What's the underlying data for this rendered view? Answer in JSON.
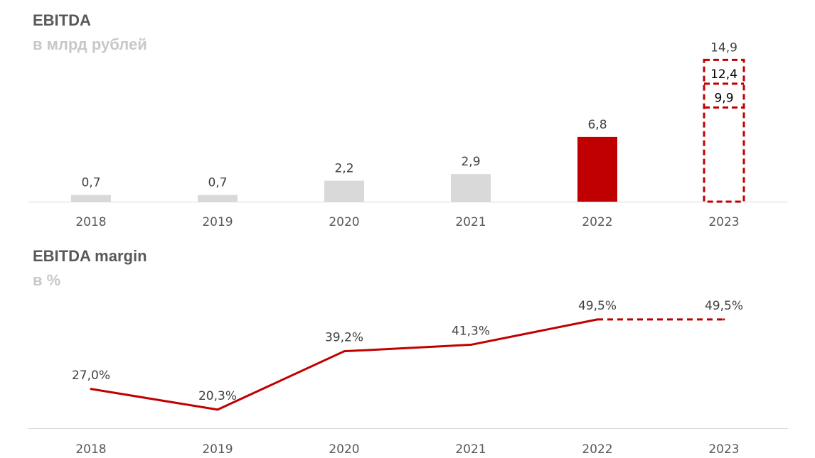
{
  "colors": {
    "bar_grey": "#d9d9d9",
    "accent_red": "#c00000",
    "axis": "#d9d9d9",
    "title": "#595959",
    "subtitle": "#c8c8c8"
  },
  "chart_data": [
    {
      "type": "bar",
      "title": "EBITDA",
      "subtitle": "в млрд рублей",
      "categories": [
        "2018",
        "2019",
        "2020",
        "2021",
        "2022",
        "2023"
      ],
      "values": [
        0.7,
        0.7,
        2.2,
        2.9,
        6.8,
        null
      ],
      "value_labels": [
        "0,7",
        "0,7",
        "2,2",
        "2,9",
        "6,8",
        ""
      ],
      "highlight_index": 4,
      "forecast": {
        "category": "2023",
        "scenarios": [
          9.9,
          12.4,
          14.9
        ],
        "labels": [
          "9,9",
          "12,4",
          "14,9"
        ],
        "style": "dashed"
      },
      "ylim": [
        0,
        16
      ],
      "xlabel": "",
      "ylabel": "",
      "grid": false
    },
    {
      "type": "line",
      "title": "EBITDA margin",
      "subtitle": "в %",
      "categories": [
        "2018",
        "2019",
        "2020",
        "2021",
        "2022",
        "2023"
      ],
      "values": [
        27.0,
        20.3,
        39.2,
        41.3,
        49.5,
        49.5
      ],
      "value_labels": [
        "27,0%",
        "20,3%",
        "39,2%",
        "41,3%",
        "49,5%",
        "49,5%"
      ],
      "forecast_from_index": 4,
      "ylim": [
        0,
        60
      ],
      "xlabel": "",
      "ylabel": "",
      "grid": false
    }
  ]
}
